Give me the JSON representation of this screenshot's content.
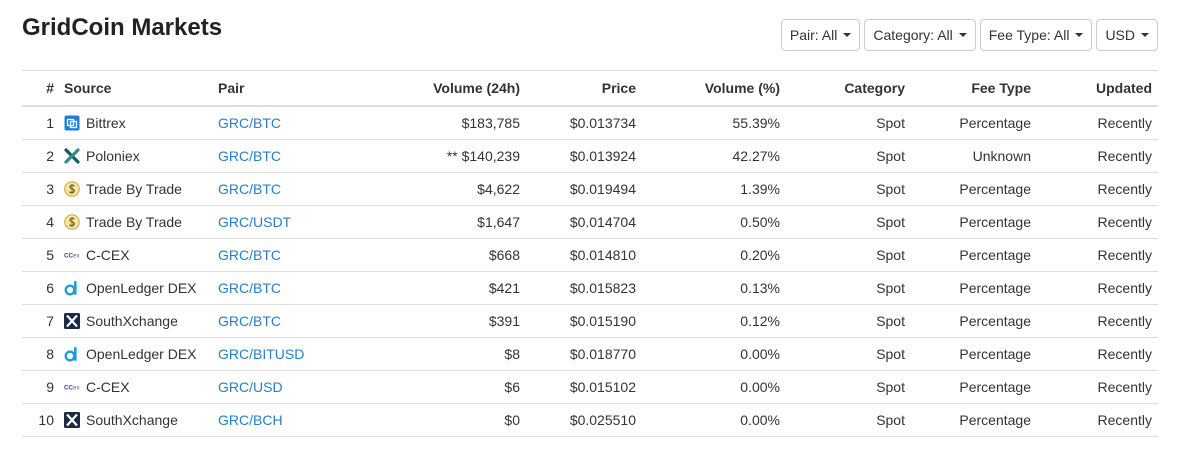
{
  "page": {
    "title": "GridCoin Markets"
  },
  "filters": [
    {
      "label": "Pair: All"
    },
    {
      "label": "Category: All"
    },
    {
      "label": "Fee Type: All"
    },
    {
      "label": "USD"
    }
  ],
  "table": {
    "headers": {
      "num": "#",
      "source": "Source",
      "pair": "Pair",
      "volume": "Volume (24h)",
      "price": "Price",
      "volume_pct": "Volume (%)",
      "category": "Category",
      "fee_type": "Fee Type",
      "updated": "Updated"
    },
    "rows": [
      {
        "num": "1",
        "source": "Bittrex",
        "icon": "bittrex-icon",
        "pair": "GRC/BTC",
        "volume": "$183,785",
        "price": "$0.013734",
        "volume_pct": "55.39%",
        "category": "Spot",
        "fee_type": "Percentage",
        "updated": "Recently"
      },
      {
        "num": "2",
        "source": "Poloniex",
        "icon": "poloniex-icon",
        "pair": "GRC/BTC",
        "volume": "** $140,239",
        "price": "$0.013924",
        "volume_pct": "42.27%",
        "category": "Spot",
        "fee_type": "Unknown",
        "updated": "Recently"
      },
      {
        "num": "3",
        "source": "Trade By Trade",
        "icon": "trade-by-trade-icon",
        "pair": "GRC/BTC",
        "volume": "$4,622",
        "price": "$0.019494",
        "volume_pct": "1.39%",
        "category": "Spot",
        "fee_type": "Percentage",
        "updated": "Recently"
      },
      {
        "num": "4",
        "source": "Trade By Trade",
        "icon": "trade-by-trade-icon",
        "pair": "GRC/USDT",
        "volume": "$1,647",
        "price": "$0.014704",
        "volume_pct": "0.50%",
        "category": "Spot",
        "fee_type": "Percentage",
        "updated": "Recently"
      },
      {
        "num": "5",
        "source": "C-CEX",
        "icon": "c-cex-icon",
        "pair": "GRC/BTC",
        "volume": "$668",
        "price": "$0.014810",
        "volume_pct": "0.20%",
        "category": "Spot",
        "fee_type": "Percentage",
        "updated": "Recently"
      },
      {
        "num": "6",
        "source": "OpenLedger DEX",
        "icon": "openledger-icon",
        "pair": "GRC/BTC",
        "volume": "$421",
        "price": "$0.015823",
        "volume_pct": "0.13%",
        "category": "Spot",
        "fee_type": "Percentage",
        "updated": "Recently"
      },
      {
        "num": "7",
        "source": "SouthXchange",
        "icon": "southxchange-icon",
        "pair": "GRC/BTC",
        "volume": "$391",
        "price": "$0.015190",
        "volume_pct": "0.12%",
        "category": "Spot",
        "fee_type": "Percentage",
        "updated": "Recently"
      },
      {
        "num": "8",
        "source": "OpenLedger DEX",
        "icon": "openledger-icon",
        "pair": "GRC/BITUSD",
        "volume": "$8",
        "price": "$0.018770",
        "volume_pct": "0.00%",
        "category": "Spot",
        "fee_type": "Percentage",
        "updated": "Recently"
      },
      {
        "num": "9",
        "source": "C-CEX",
        "icon": "c-cex-icon",
        "pair": "GRC/USD",
        "volume": "$6",
        "price": "$0.015102",
        "volume_pct": "0.00%",
        "category": "Spot",
        "fee_type": "Percentage",
        "updated": "Recently"
      },
      {
        "num": "10",
        "source": "SouthXchange",
        "icon": "southxchange-icon",
        "pair": "GRC/BCH",
        "volume": "$0",
        "price": "$0.025510",
        "volume_pct": "0.00%",
        "category": "Spot",
        "fee_type": "Percentage",
        "updated": "Recently"
      }
    ]
  },
  "colors": {
    "link": "#2a7ec8",
    "border": "#dddddd",
    "text": "#333333"
  }
}
